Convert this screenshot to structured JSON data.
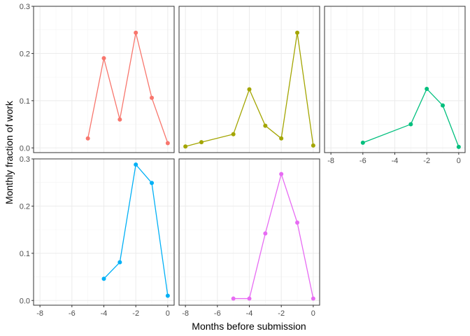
{
  "chart_data": {
    "type": "line",
    "layout": "facet-wrap",
    "xlabel": "Months before submission",
    "ylabel": "Monthly fraction of work",
    "xlim": [
      -8.4,
      0.4
    ],
    "ylim": [
      -0.01,
      0.3
    ],
    "x_ticks": [
      -8,
      -6,
      -4,
      -2,
      0
    ],
    "x_tick_labels": [
      "-8",
      "-6",
      "-4",
      "-2",
      "0"
    ],
    "y_ticks": [
      0,
      0.1,
      0.2,
      0.3
    ],
    "y_tick_labels": [
      "0.0",
      "0.1",
      "0.2",
      "0.3"
    ],
    "grid": true,
    "series": [
      {
        "color": "#F8766D",
        "x": [
          -5,
          -4,
          -3,
          -2,
          -1,
          0
        ],
        "y": [
          0.02,
          0.19,
          0.06,
          0.244,
          0.106,
          0.01
        ]
      },
      {
        "color": "#A3A500",
        "x": [
          -8,
          -7,
          -5,
          -4,
          -3,
          -2,
          -1,
          0
        ],
        "y": [
          0.003,
          0.012,
          0.029,
          0.124,
          0.047,
          0.02,
          0.244,
          0.005
        ]
      },
      {
        "color": "#00BF7D",
        "x": [
          -6,
          -3,
          -2,
          -1,
          0
        ],
        "y": [
          0.011,
          0.05,
          0.125,
          0.09,
          0.002
        ]
      },
      {
        "color": "#00B0F6",
        "x": [
          -4,
          -3,
          -2,
          -1,
          0
        ],
        "y": [
          0.046,
          0.081,
          0.288,
          0.249,
          0.01
        ]
      },
      {
        "color": "#E76BF3",
        "x": [
          -5,
          -4,
          -3,
          -2,
          -1,
          0
        ],
        "y": [
          0.004,
          0.004,
          0.142,
          0.268,
          0.165,
          0.004
        ]
      }
    ]
  }
}
